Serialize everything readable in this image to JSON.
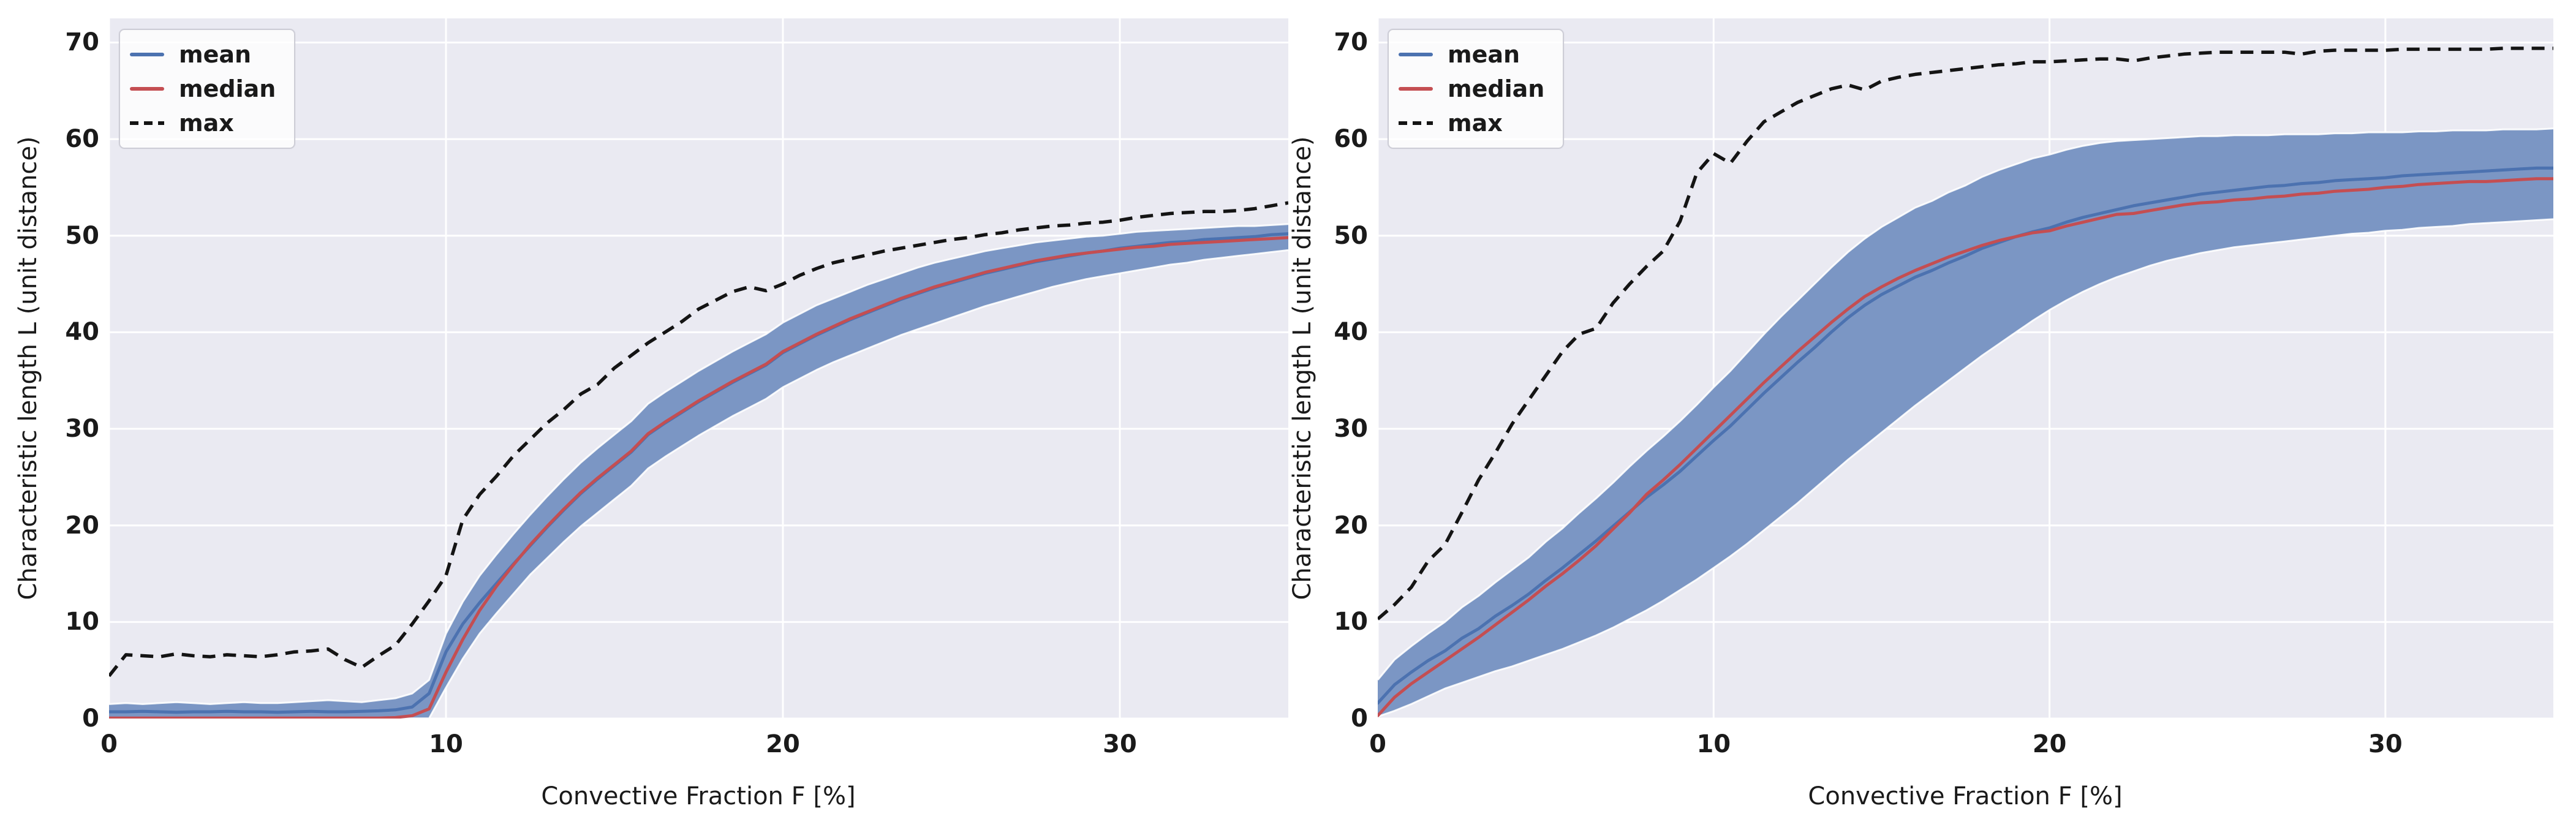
{
  "styles": {
    "figure_background": "#ffffff",
    "plot_background": "#eaeaf2",
    "grid_color": "#ffffff",
    "text_color": "#1a1a1a",
    "band_color": "#7b96c4",
    "mean_color": "#4c72b0",
    "median_color": "#c44e52",
    "max_color": "#141414"
  },
  "legend": {
    "items": [
      {
        "label": "mean",
        "color": "#4c72b0",
        "dash": false
      },
      {
        "label": "median",
        "color": "#c44e52",
        "dash": false
      },
      {
        "label": "max",
        "color": "#141414",
        "dash": true
      }
    ]
  },
  "chart_data": [
    {
      "id": "left",
      "type": "line",
      "title": "",
      "xlabel": "Convective Fraction F [%]",
      "ylabel": "Characteristic length L (unit distance)",
      "xlim": [
        0,
        35
      ],
      "ylim": [
        0,
        72.5
      ],
      "xticks": [
        0,
        10,
        20,
        30
      ],
      "yticks": [
        0,
        10,
        20,
        30,
        40,
        50,
        60,
        70
      ],
      "grid": true,
      "legend_position": "upper left",
      "x": [
        0,
        0.5,
        1,
        1.5,
        2,
        2.5,
        3,
        3.5,
        4,
        4.5,
        5,
        5.5,
        6,
        6.5,
        7,
        7.5,
        8,
        8.5,
        9,
        9.5,
        10,
        10.5,
        11,
        11.5,
        12,
        12.5,
        13,
        13.5,
        14,
        14.5,
        15,
        15.5,
        16,
        16.5,
        17,
        17.5,
        18,
        18.5,
        19,
        19.5,
        20,
        20.5,
        21,
        21.5,
        22,
        22.5,
        23,
        23.5,
        24,
        24.5,
        25,
        25.5,
        26,
        26.5,
        27,
        27.5,
        28,
        28.5,
        29,
        29.5,
        30,
        30.5,
        31,
        31.5,
        32,
        32.5,
        33,
        33.5,
        34,
        34.5,
        35
      ],
      "series": [
        {
          "name": "mean",
          "type": "line",
          "color": "#4c72b0",
          "values": [
            0.7,
            0.7,
            0.75,
            0.7,
            0.65,
            0.7,
            0.7,
            0.75,
            0.7,
            0.7,
            0.65,
            0.7,
            0.75,
            0.7,
            0.7,
            0.75,
            0.8,
            0.9,
            1.2,
            2.6,
            6.9,
            9.8,
            12.0,
            14.0,
            16.0,
            17.9,
            19.8,
            21.6,
            23.3,
            24.8,
            26.2,
            27.6,
            29.4,
            30.6,
            31.7,
            32.8,
            33.8,
            34.8,
            35.7,
            36.6,
            37.9,
            38.8,
            39.7,
            40.5,
            41.3,
            42.0,
            42.7,
            43.4,
            44.0,
            44.6,
            45.1,
            45.6,
            46.1,
            46.5,
            46.9,
            47.3,
            47.6,
            47.9,
            48.2,
            48.4,
            48.7,
            48.9,
            49.1,
            49.3,
            49.4,
            49.6,
            49.7,
            49.8,
            49.9,
            50.1,
            50.2
          ]
        },
        {
          "name": "median",
          "type": "line",
          "color": "#c44e52",
          "values": [
            0.05,
            0.05,
            0.05,
            0.05,
            0.05,
            0.05,
            0.05,
            0.05,
            0.05,
            0.05,
            0.05,
            0.05,
            0.05,
            0.05,
            0.05,
            0.05,
            0.05,
            0.1,
            0.3,
            1.0,
            4.8,
            8.2,
            11.2,
            13.7,
            15.9,
            18.0,
            19.9,
            21.7,
            23.4,
            24.9,
            26.3,
            27.7,
            29.5,
            30.7,
            31.8,
            32.9,
            33.9,
            34.9,
            35.8,
            36.7,
            38.0,
            38.9,
            39.8,
            40.6,
            41.4,
            42.1,
            42.8,
            43.5,
            44.1,
            44.7,
            45.2,
            45.7,
            46.2,
            46.6,
            47.0,
            47.4,
            47.7,
            48.0,
            48.2,
            48.4,
            48.6,
            48.8,
            48.9,
            49.1,
            49.2,
            49.3,
            49.4,
            49.5,
            49.6,
            49.7,
            49.8
          ]
        },
        {
          "name": "max",
          "type": "line",
          "dash": true,
          "color": "#141414",
          "values": [
            4.4,
            6.6,
            6.5,
            6.4,
            6.7,
            6.5,
            6.4,
            6.6,
            6.5,
            6.4,
            6.6,
            6.9,
            7.0,
            7.2,
            6.1,
            5.3,
            6.5,
            7.6,
            9.8,
            12.2,
            14.8,
            20.6,
            23.2,
            25.1,
            27.2,
            28.9,
            30.6,
            32.0,
            33.6,
            34.6,
            36.3,
            37.6,
            38.9,
            40.0,
            41.1,
            42.4,
            43.3,
            44.2,
            44.7,
            44.3,
            45.0,
            45.9,
            46.6,
            47.2,
            47.6,
            48.0,
            48.4,
            48.7,
            49.0,
            49.3,
            49.6,
            49.8,
            50.1,
            50.3,
            50.6,
            50.8,
            51.0,
            51.1,
            51.3,
            51.4,
            51.6,
            51.9,
            52.1,
            52.3,
            52.4,
            52.5,
            52.5,
            52.6,
            52.8,
            53.1,
            53.4
          ]
        },
        {
          "name": "band",
          "type": "area",
          "color": "#7b96c4",
          "upper": [
            1.5,
            1.6,
            1.5,
            1.6,
            1.7,
            1.6,
            1.5,
            1.6,
            1.7,
            1.6,
            1.6,
            1.7,
            1.8,
            1.9,
            1.8,
            1.7,
            1.9,
            2.1,
            2.6,
            4.0,
            8.8,
            12.1,
            14.8,
            17.0,
            19.1,
            21.1,
            23.0,
            24.8,
            26.5,
            28.0,
            29.4,
            30.8,
            32.6,
            33.8,
            34.9,
            36.0,
            37.0,
            38.0,
            38.9,
            39.8,
            41.0,
            41.9,
            42.8,
            43.5,
            44.2,
            44.9,
            45.5,
            46.1,
            46.7,
            47.2,
            47.6,
            48.0,
            48.4,
            48.7,
            49.0,
            49.3,
            49.5,
            49.7,
            49.9,
            50.0,
            50.2,
            50.4,
            50.5,
            50.6,
            50.7,
            50.8,
            50.9,
            51.0,
            51.0,
            51.1,
            51.2
          ],
          "lower": [
            0.02,
            0.02,
            0.02,
            0.02,
            0.02,
            0.02,
            0.02,
            0.02,
            0.02,
            0.02,
            0.02,
            0.02,
            0.02,
            0.02,
            0.02,
            0.02,
            0.02,
            0.02,
            0.02,
            0.02,
            3.2,
            6.2,
            8.8,
            10.9,
            12.9,
            14.9,
            16.6,
            18.3,
            19.9,
            21.3,
            22.7,
            24.1,
            25.9,
            27.1,
            28.2,
            29.3,
            30.3,
            31.3,
            32.2,
            33.1,
            34.3,
            35.2,
            36.1,
            36.9,
            37.6,
            38.3,
            39.0,
            39.7,
            40.3,
            40.9,
            41.5,
            42.1,
            42.7,
            43.2,
            43.7,
            44.2,
            44.7,
            45.1,
            45.5,
            45.8,
            46.1,
            46.4,
            46.7,
            47.0,
            47.2,
            47.5,
            47.7,
            47.9,
            48.1,
            48.3,
            48.5
          ]
        }
      ]
    },
    {
      "id": "right",
      "type": "line",
      "title": "",
      "xlabel": "Convective Fraction F [%]",
      "ylabel": "Characteristic length L (unit distance)",
      "xlim": [
        0,
        35
      ],
      "ylim": [
        0,
        72.5
      ],
      "xticks": [
        0,
        10,
        20,
        30
      ],
      "yticks": [
        0,
        10,
        20,
        30,
        40,
        50,
        60,
        70
      ],
      "grid": true,
      "legend_position": "upper left",
      "x": [
        0,
        0.5,
        1,
        1.5,
        2,
        2.5,
        3,
        3.5,
        4,
        4.5,
        5,
        5.5,
        6,
        6.5,
        7,
        7.5,
        8,
        8.5,
        9,
        9.5,
        10,
        10.5,
        11,
        11.5,
        12,
        12.5,
        13,
        13.5,
        14,
        14.5,
        15,
        15.5,
        16,
        16.5,
        17,
        17.5,
        18,
        18.5,
        19,
        19.5,
        20,
        20.5,
        21,
        21.5,
        22,
        22.5,
        23,
        23.5,
        24,
        24.5,
        25,
        25.5,
        26,
        26.5,
        27,
        27.5,
        28,
        28.5,
        29,
        29.5,
        30,
        30.5,
        31,
        31.5,
        32,
        32.5,
        33,
        33.5,
        34,
        34.5,
        35
      ],
      "series": [
        {
          "name": "mean",
          "type": "line",
          "color": "#4c72b0",
          "values": [
            1.6,
            3.5,
            4.8,
            6.0,
            7.0,
            8.3,
            9.3,
            10.6,
            11.7,
            12.9,
            14.3,
            15.6,
            17.0,
            18.4,
            19.9,
            21.4,
            22.9,
            24.2,
            25.6,
            27.2,
            28.8,
            30.3,
            32.0,
            33.7,
            35.3,
            36.9,
            38.4,
            40.0,
            41.5,
            42.8,
            43.9,
            44.8,
            45.7,
            46.4,
            47.2,
            47.9,
            48.7,
            49.3,
            49.9,
            50.4,
            50.8,
            51.4,
            51.9,
            52.3,
            52.7,
            53.1,
            53.4,
            53.7,
            54.0,
            54.3,
            54.5,
            54.7,
            54.9,
            55.1,
            55.2,
            55.4,
            55.5,
            55.7,
            55.8,
            55.9,
            56.0,
            56.2,
            56.3,
            56.4,
            56.5,
            56.6,
            56.7,
            56.8,
            56.9,
            57.0,
            57.0
          ]
        },
        {
          "name": "median",
          "type": "line",
          "color": "#c44e52",
          "values": [
            0.3,
            2.2,
            3.6,
            4.8,
            6.0,
            7.2,
            8.4,
            9.7,
            11.0,
            12.3,
            13.7,
            15.0,
            16.4,
            17.9,
            19.6,
            21.3,
            23.2,
            24.7,
            26.3,
            28.0,
            29.7,
            31.4,
            33.1,
            34.8,
            36.4,
            38.0,
            39.5,
            41.0,
            42.4,
            43.7,
            44.7,
            45.6,
            46.4,
            47.1,
            47.8,
            48.4,
            49.0,
            49.5,
            49.9,
            50.3,
            50.5,
            51.0,
            51.4,
            51.8,
            52.2,
            52.3,
            52.6,
            52.9,
            53.2,
            53.4,
            53.5,
            53.7,
            53.8,
            54.0,
            54.1,
            54.3,
            54.4,
            54.6,
            54.7,
            54.8,
            55.0,
            55.1,
            55.3,
            55.4,
            55.5,
            55.6,
            55.6,
            55.7,
            55.8,
            55.9,
            55.9
          ]
        },
        {
          "name": "max",
          "type": "line",
          "dash": true,
          "color": "#141414",
          "values": [
            10.3,
            11.8,
            13.6,
            16.3,
            18.0,
            21.3,
            24.7,
            27.5,
            30.5,
            33.0,
            35.5,
            38.0,
            39.8,
            40.4,
            43.0,
            45.0,
            46.8,
            48.4,
            51.5,
            56.5,
            58.5,
            57.5,
            59.8,
            61.8,
            62.8,
            63.8,
            64.5,
            65.2,
            65.6,
            65.1,
            66.0,
            66.4,
            66.7,
            66.9,
            67.1,
            67.3,
            67.5,
            67.7,
            67.8,
            68.0,
            68.0,
            68.1,
            68.2,
            68.3,
            68.3,
            68.1,
            68.4,
            68.6,
            68.8,
            68.9,
            69.0,
            69.0,
            69.0,
            69.0,
            69.0,
            68.8,
            69.1,
            69.2,
            69.2,
            69.2,
            69.2,
            69.3,
            69.3,
            69.3,
            69.3,
            69.3,
            69.3,
            69.4,
            69.4,
            69.4,
            69.4
          ]
        },
        {
          "name": "band",
          "type": "area",
          "color": "#7b96c4",
          "upper": [
            4.0,
            6.1,
            7.5,
            8.8,
            10.0,
            11.5,
            12.7,
            14.1,
            15.4,
            16.7,
            18.3,
            19.7,
            21.3,
            22.8,
            24.4,
            26.1,
            27.7,
            29.2,
            30.8,
            32.5,
            34.3,
            36.0,
            37.9,
            39.8,
            41.6,
            43.3,
            45.0,
            46.7,
            48.3,
            49.7,
            50.9,
            51.9,
            52.9,
            53.6,
            54.5,
            55.2,
            56.1,
            56.8,
            57.4,
            58.0,
            58.4,
            58.9,
            59.3,
            59.6,
            59.8,
            59.9,
            60.0,
            60.1,
            60.2,
            60.3,
            60.3,
            60.4,
            60.4,
            60.4,
            60.5,
            60.5,
            60.5,
            60.6,
            60.6,
            60.7,
            60.7,
            60.7,
            60.8,
            60.8,
            60.9,
            60.9,
            60.9,
            61.0,
            61.0,
            61.0,
            61.1
          ],
          "lower": [
            0.2,
            0.8,
            1.5,
            2.3,
            3.1,
            3.7,
            4.3,
            4.9,
            5.4,
            6.0,
            6.6,
            7.2,
            7.9,
            8.6,
            9.4,
            10.3,
            11.2,
            12.2,
            13.3,
            14.4,
            15.6,
            16.8,
            18.1,
            19.5,
            20.9,
            22.3,
            23.8,
            25.3,
            26.8,
            28.2,
            29.6,
            31.0,
            32.4,
            33.7,
            35.0,
            36.3,
            37.6,
            38.8,
            40.0,
            41.2,
            42.3,
            43.3,
            44.2,
            45.0,
            45.7,
            46.3,
            46.9,
            47.4,
            47.8,
            48.2,
            48.5,
            48.8,
            49.0,
            49.2,
            49.4,
            49.6,
            49.8,
            50.0,
            50.2,
            50.3,
            50.5,
            50.6,
            50.8,
            50.9,
            51.0,
            51.2,
            51.3,
            51.4,
            51.5,
            51.6,
            51.7
          ]
        }
      ]
    }
  ]
}
